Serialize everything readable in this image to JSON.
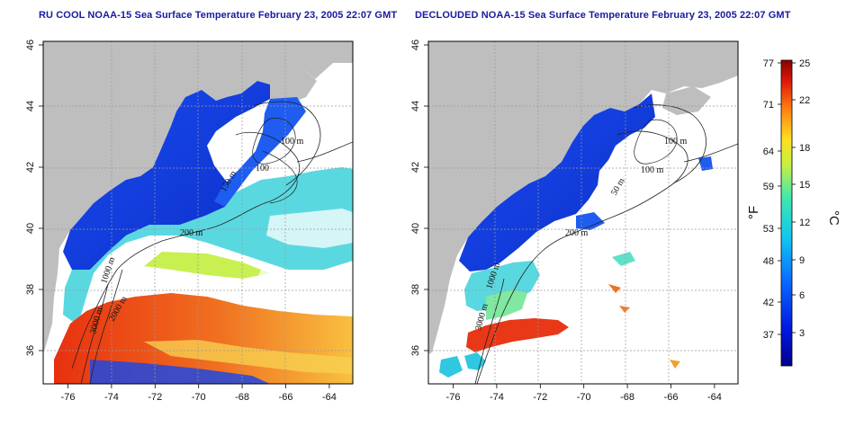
{
  "panels": [
    {
      "title": "RU COOL NOAA-15 Sea Surface Temperature February 23, 2005 22:07 GMT",
      "isobaths": [
        "100 m",
        "100",
        "150 m",
        "200 m",
        "1000 m",
        "2000 m",
        "3000 m"
      ]
    },
    {
      "title": "DECLOUDED NOAA-15 Sea Surface Temperature February 23, 2005 22:07 GMT",
      "isobaths": [
        "100 m",
        "100 m",
        "50 m",
        "200 m",
        "1000 m",
        "3000 m"
      ]
    }
  ],
  "axes": {
    "lon_ticks": [
      "-76",
      "-74",
      "-72",
      "-70",
      "-68",
      "-66",
      "-64"
    ],
    "lat_ticks": [
      "36",
      "38",
      "40",
      "42",
      "44",
      "46"
    ]
  },
  "colorbar": {
    "fahrenheit_ticks": [
      "77",
      "71",
      "64",
      "59",
      "53",
      "48",
      "42",
      "37"
    ],
    "celsius_ticks": [
      "25",
      "22",
      "18",
      "15",
      "12",
      "9",
      "6",
      "3"
    ],
    "fahrenheit_unit": "°F",
    "celsius_unit": "°C"
  },
  "colors": {
    "land": "#bebebe",
    "ocean_cold": "#0a3cd8",
    "ocean_mid": "#3ad8d0",
    "ocean_warm": "#e8401a",
    "title": "#1a1aa0"
  }
}
